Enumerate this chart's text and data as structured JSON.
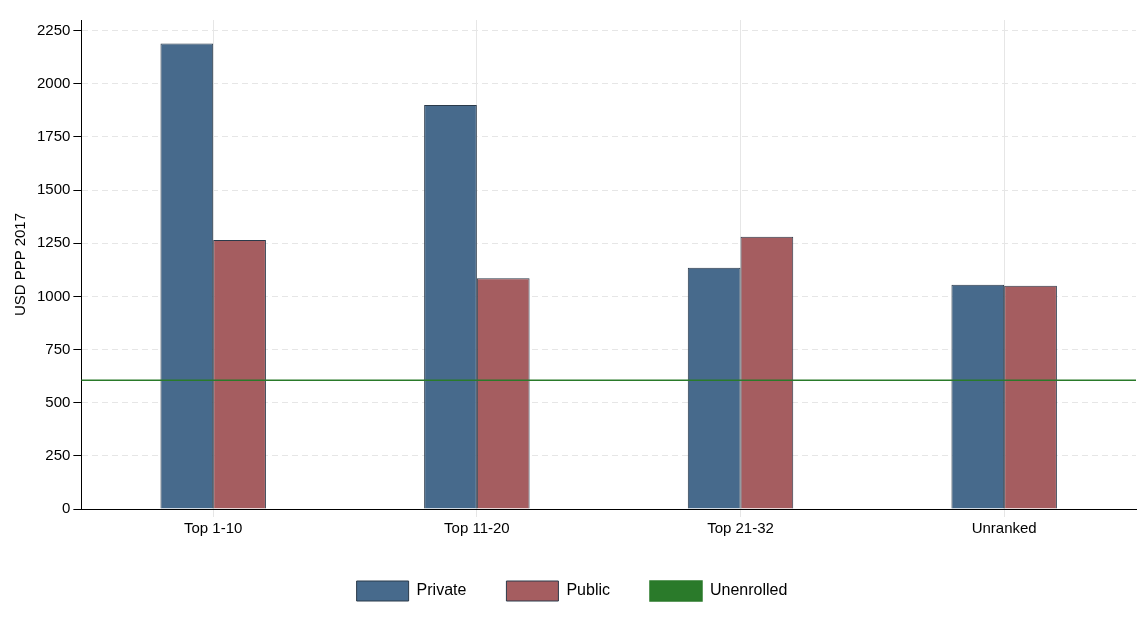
{
  "chart_data": {
    "type": "bar",
    "ylabel": "USD PPP 2017",
    "categories": [
      "Top 1-10",
      "Top 11-20",
      "Top 21-32",
      "Unranked"
    ],
    "series": [
      {
        "name": "Private",
        "color": "#476a8c",
        "values": [
          2190,
          1900,
          1135,
          1055
        ]
      },
      {
        "name": "Public",
        "color": "#a55d60",
        "values": [
          1265,
          1085,
          1280,
          1050
        ]
      }
    ],
    "ref_lines": [
      {
        "axis": "y",
        "value": 605,
        "label": "Unenrolled",
        "color": "#2a7a2a"
      }
    ],
    "ylim": [
      0,
      2300
    ],
    "yticks": [
      0,
      250,
      500,
      750,
      1000,
      1250,
      1500,
      1750,
      2000,
      2250
    ],
    "grid": true,
    "legend": "bottom"
  }
}
